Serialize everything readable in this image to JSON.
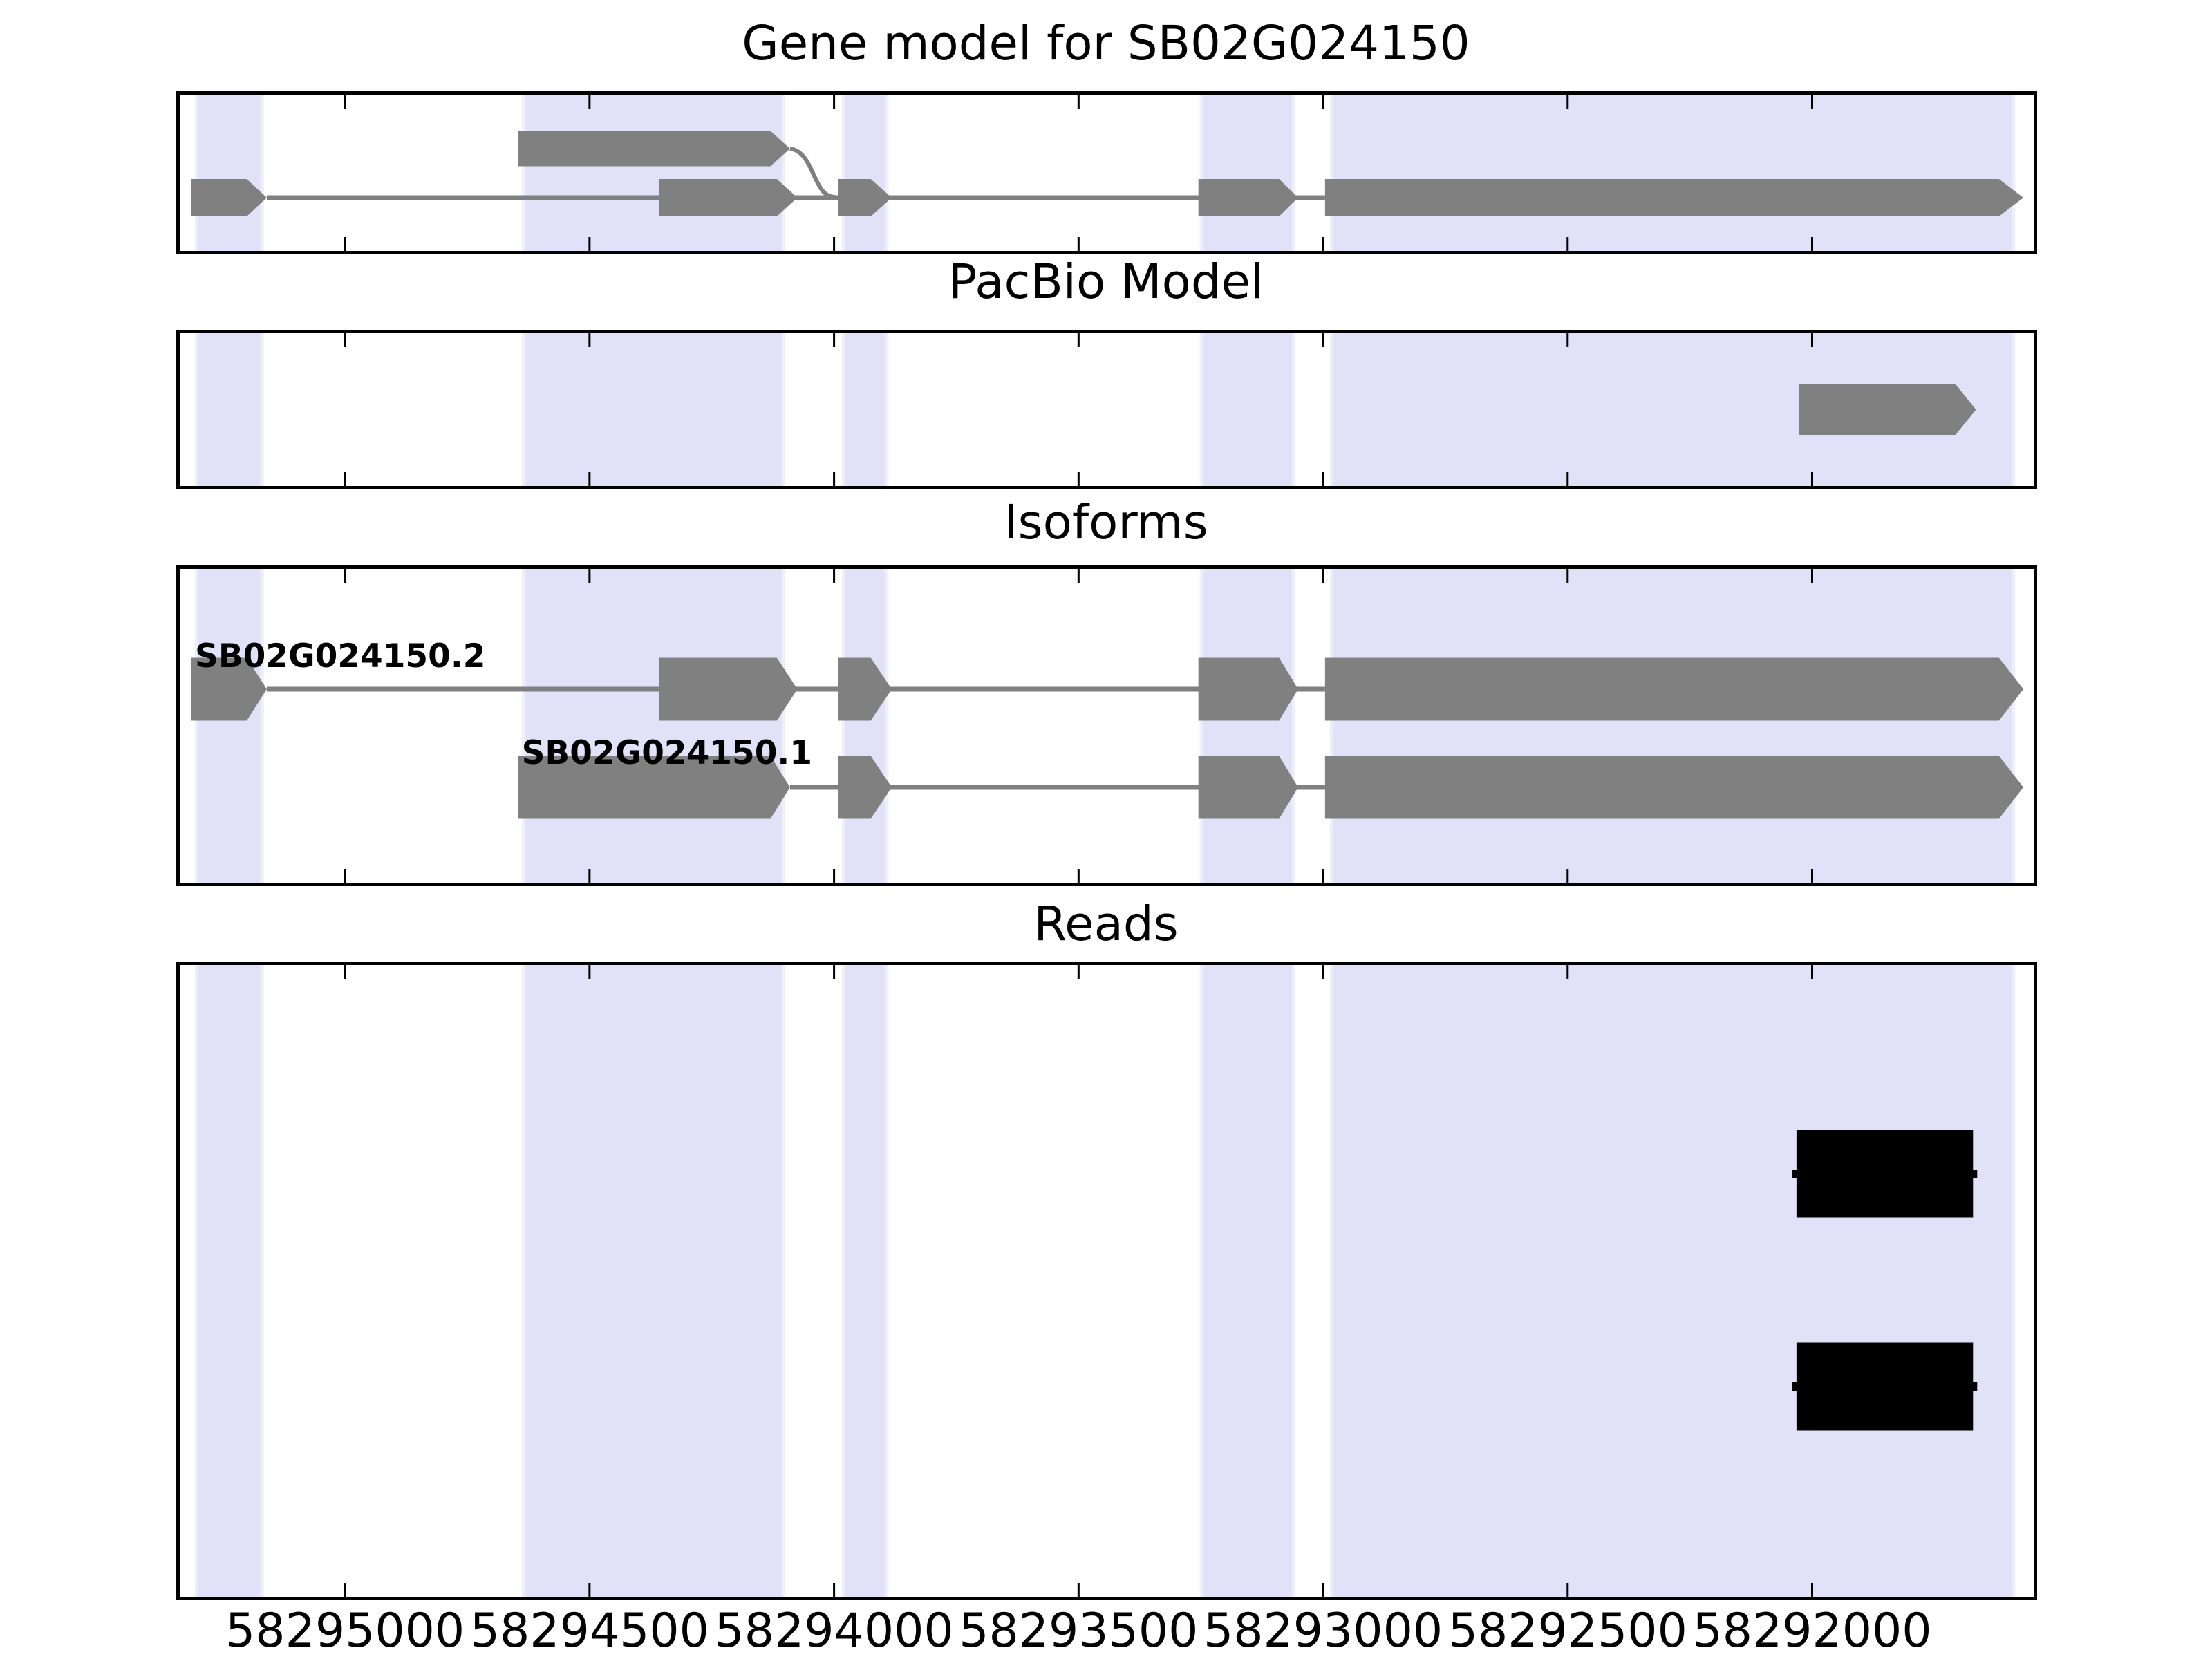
{
  "panels": {
    "gene_model": {
      "title": "Gene model for SB02G024150"
    },
    "pacbio": {
      "title": "PacBio Model"
    },
    "isoforms": {
      "title": "Isoforms"
    },
    "reads": {
      "title": "Reads"
    }
  },
  "chart_data": {
    "type": "genome-tracks",
    "x_axis": {
      "range": [
        58295338,
        58291547
      ],
      "direction": "decreasing",
      "tick_values": [
        58295000,
        58294500,
        58294000,
        58293500,
        58293000,
        58292500,
        58292000
      ],
      "tick_labels": [
        "58295000",
        "58294500",
        "58294000",
        "58293500",
        "58293000",
        "58292500",
        "58292000"
      ]
    },
    "colors": {
      "highlight": "#e1e1f8",
      "highlight_edge": "#efeffb",
      "exon": "#808080",
      "intron": "#808080",
      "read": "#000000",
      "frame": "#000000"
    },
    "highlight_regions": [
      [
        58295307,
        58295166
      ],
      [
        58294638,
        58294100
      ],
      [
        58293984,
        58293889
      ],
      [
        58293252,
        58293057
      ],
      [
        58292986,
        58291585
      ]
    ],
    "tracks": {
      "gene_model": {
        "intron": [
          58295160,
          58292996
        ],
        "connector": {
          "from_bp": 58294090,
          "to_bp": 58293998
        },
        "features": [
          {
            "start": 58295314,
            "body_end": 58295201,
            "end": 58295160,
            "lane": "main"
          },
          {
            "start": 58294646,
            "body_end": 58294130,
            "end": 58294090,
            "lane": "upper"
          },
          {
            "start": 58294358,
            "body_end": 58294117,
            "end": 58294075,
            "lane": "main"
          },
          {
            "start": 58293991,
            "body_end": 58293925,
            "end": 58293882,
            "lane": "main"
          },
          {
            "start": 58293255,
            "body_end": 58293090,
            "end": 58293051,
            "lane": "main"
          },
          {
            "start": 58292996,
            "body_end": 58291618,
            "end": 58291568,
            "lane": "main"
          }
        ]
      },
      "pacbio": {
        "features": [
          {
            "start": 58292027,
            "body_end": 58291708,
            "end": 58291665
          }
        ]
      },
      "isoforms": [
        {
          "name": "SB02G024150.2",
          "exons": [
            [
              58295314,
              58295201,
              58295160
            ],
            [
              58294358,
              58294117,
              58294075
            ],
            [
              58293991,
              58293925,
              58293882
            ],
            [
              58293255,
              58293090,
              58293051
            ],
            [
              58292996,
              58291618,
              58291568
            ]
          ]
        },
        {
          "name": "SB02G024150.1",
          "exons": [
            [
              58294646,
              58294130,
              58294090
            ],
            [
              58293991,
              58293925,
              58293882
            ],
            [
              58293255,
              58293090,
              58293051
            ],
            [
              58292996,
              58291618,
              58291568
            ]
          ]
        }
      ],
      "reads": [
        [
          58292032,
          58291671
        ],
        [
          58292032,
          58291671
        ]
      ]
    }
  }
}
